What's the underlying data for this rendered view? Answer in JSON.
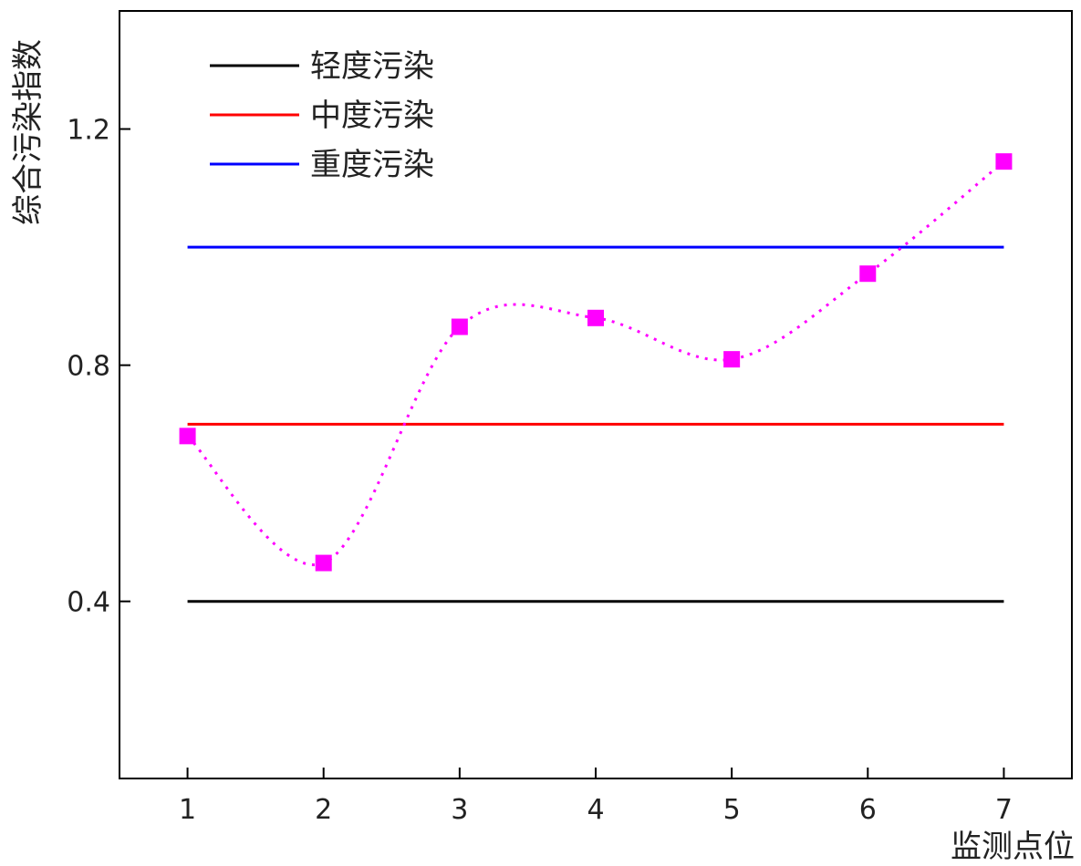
{
  "chart_data": {
    "type": "line",
    "title": "",
    "xlabel": "监测点位",
    "ylabel": "综合污染指数",
    "x": [
      1,
      2,
      3,
      4,
      5,
      6,
      7
    ],
    "xlim": [
      0.5,
      7.5
    ],
    "ylim": [
      0.1,
      1.4
    ],
    "yticks": [
      0.4,
      0.8,
      1.2
    ],
    "grid": false,
    "legend_position": "top-left",
    "series": [
      {
        "values": [
          0.68,
          0.465,
          0.865,
          0.88,
          0.81,
          0.955,
          1.145
        ],
        "color": "#ff00ff",
        "line_style": "dotted",
        "marker": "square"
      }
    ],
    "reference_lines": [
      {
        "name": "轻度污染",
        "y": 0.4,
        "color": "#000000"
      },
      {
        "name": "中度污染",
        "y": 0.7,
        "color": "#ff0000"
      },
      {
        "name": "重度污染",
        "y": 1.0,
        "color": "#0000ff"
      }
    ]
  }
}
